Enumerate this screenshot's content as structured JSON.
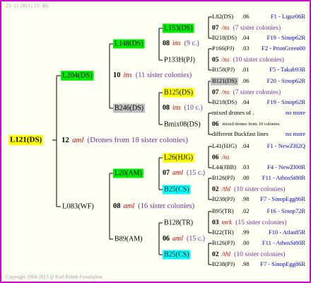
{
  "header": {
    "timestamp": "23- 11-2013 ( 15: 38)"
  },
  "footer": {
    "copyright": "Copyright 2004-2013 @ Karl Kehde Foundation."
  },
  "root": {
    "label": "L121(DS)",
    "color": "#ffff00",
    "mating": {
      "number": "12",
      "race": "aml",
      "note": "(Drones from 18 sister colonies)"
    }
  },
  "generation2": [
    {
      "label": "L204(DS)",
      "color": "#00ee00",
      "mating": {
        "number": "10",
        "race": "ins",
        "note": "(11 sister colonies)"
      }
    },
    {
      "label": "L083(WF)",
      "mating": {
        "number": "08",
        "race": "aml",
        "note": "(16 sister colonies)"
      }
    }
  ],
  "generation3": [
    {
      "label": "L148(DS)",
      "color": "#00ee00",
      "mating": {
        "number": "08",
        "race": "ins",
        "note": "(9 c.)"
      }
    },
    {
      "label": "B246(DS)",
      "color": "#c0c0c0",
      "mating": {
        "number": "08",
        "race": "ins",
        "note": "(10 c.)"
      }
    },
    {
      "label": "L20(AM)",
      "color": "#00ee00",
      "mating": {
        "number": "07",
        "race": "aml",
        "note": "(15 c.)"
      }
    },
    {
      "label": "B89(AM)",
      "mating": {
        "number": "06",
        "race": "aml",
        "note": "(15 c.)"
      }
    }
  ],
  "generation4": [
    {
      "label": "L153(DS)",
      "color": "#00ee00",
      "mating": {
        "number": "07",
        "race": "/ns",
        "note": "(7 sister colonies)"
      }
    },
    {
      "label": "P133H(PJ)",
      "mating": {
        "number": "05",
        "race": "/ns",
        "note": "(10 sister colonies)"
      }
    },
    {
      "label": "B125(DS)",
      "color": "#ffff00",
      "mating": {
        "number": "07",
        "race": "/ns",
        "note": "(7 sister colonies)"
      }
    },
    {
      "label": "Bmix08(DS)",
      "mating": {
        "number": "06",
        "note": "mixed drones from 10 colonies"
      }
    },
    {
      "label": "L26(HJG)",
      "color": "#ffff00",
      "mating": {
        "number": "06",
        "race": "/ns"
      }
    },
    {
      "label": "B25(CS)",
      "color": "#00ffff",
      "mating": {
        "number": "02",
        "race": "/thl",
        "note": "(10 sister colonies)"
      }
    },
    {
      "label": "B128(TR)",
      "mating": {
        "number": "03",
        "race": "mrk",
        "note": "(15 sister colonies)"
      }
    },
    {
      "label": "B25(CS)",
      "color": "#00ffff",
      "mating": {
        "number": "02",
        "race": "/thl",
        "note": "(10 sister colonies)"
      }
    }
  ],
  "generation5": [
    {
      "label": "L82(DS)",
      "inbreeding": ".06",
      "line": "F1 - Ligur06R"
    },
    {
      "label": "B218(DS)",
      "inbreeding": ".04",
      "line": "F19 - Sinop62R"
    },
    {
      "label": "P166(PJ)",
      "inbreeding": ".03",
      "line": "F2 - PrimGreen00"
    },
    {
      "label": "B158(PJ)",
      "inbreeding": ".01",
      "line": "F5 - Takab93R"
    },
    {
      "label": "B121(DS)",
      "color": "#c0c0c0",
      "inbreeding": ".06",
      "line": "F20 - Sinop62R"
    },
    {
      "label": "B218(DS)",
      "inbreeding": ".04",
      "line": "F19 - Sinop62R"
    },
    {
      "label": "mixed drones of .",
      "line": "no more"
    },
    {
      "label": "different Buckfast lines",
      "line": "no more"
    },
    {
      "label": "L41(HJG)",
      "inbreeding": ".04",
      "line": "F1 - NewZl02Q"
    },
    {
      "label": "L44(JBB)",
      "inbreeding": ".03",
      "line": "F4 - NewZl00R"
    },
    {
      "label": "B126(PJ)",
      "inbreeding": ".00",
      "line": "F11 - AthosSt80R"
    },
    {
      "label": "B238(PJ)",
      "inbreeding": ".98",
      "line": "F7 - SinopEgg86R"
    },
    {
      "label": "B95(TR)",
      "inbreeding": ".02",
      "line": "F16 - Sinop72R"
    },
    {
      "label": "B22(TR)",
      "inbreeding": ".99",
      "line": "F10 - Atlas85R"
    },
    {
      "label": "B126(PJ)",
      "inbreeding": ".00",
      "line": "F11 - AthosSt80R"
    },
    {
      "label": "B238(PJ)",
      "inbreeding": ".98",
      "line": "F7 - SinopEgg86R"
    }
  ]
}
